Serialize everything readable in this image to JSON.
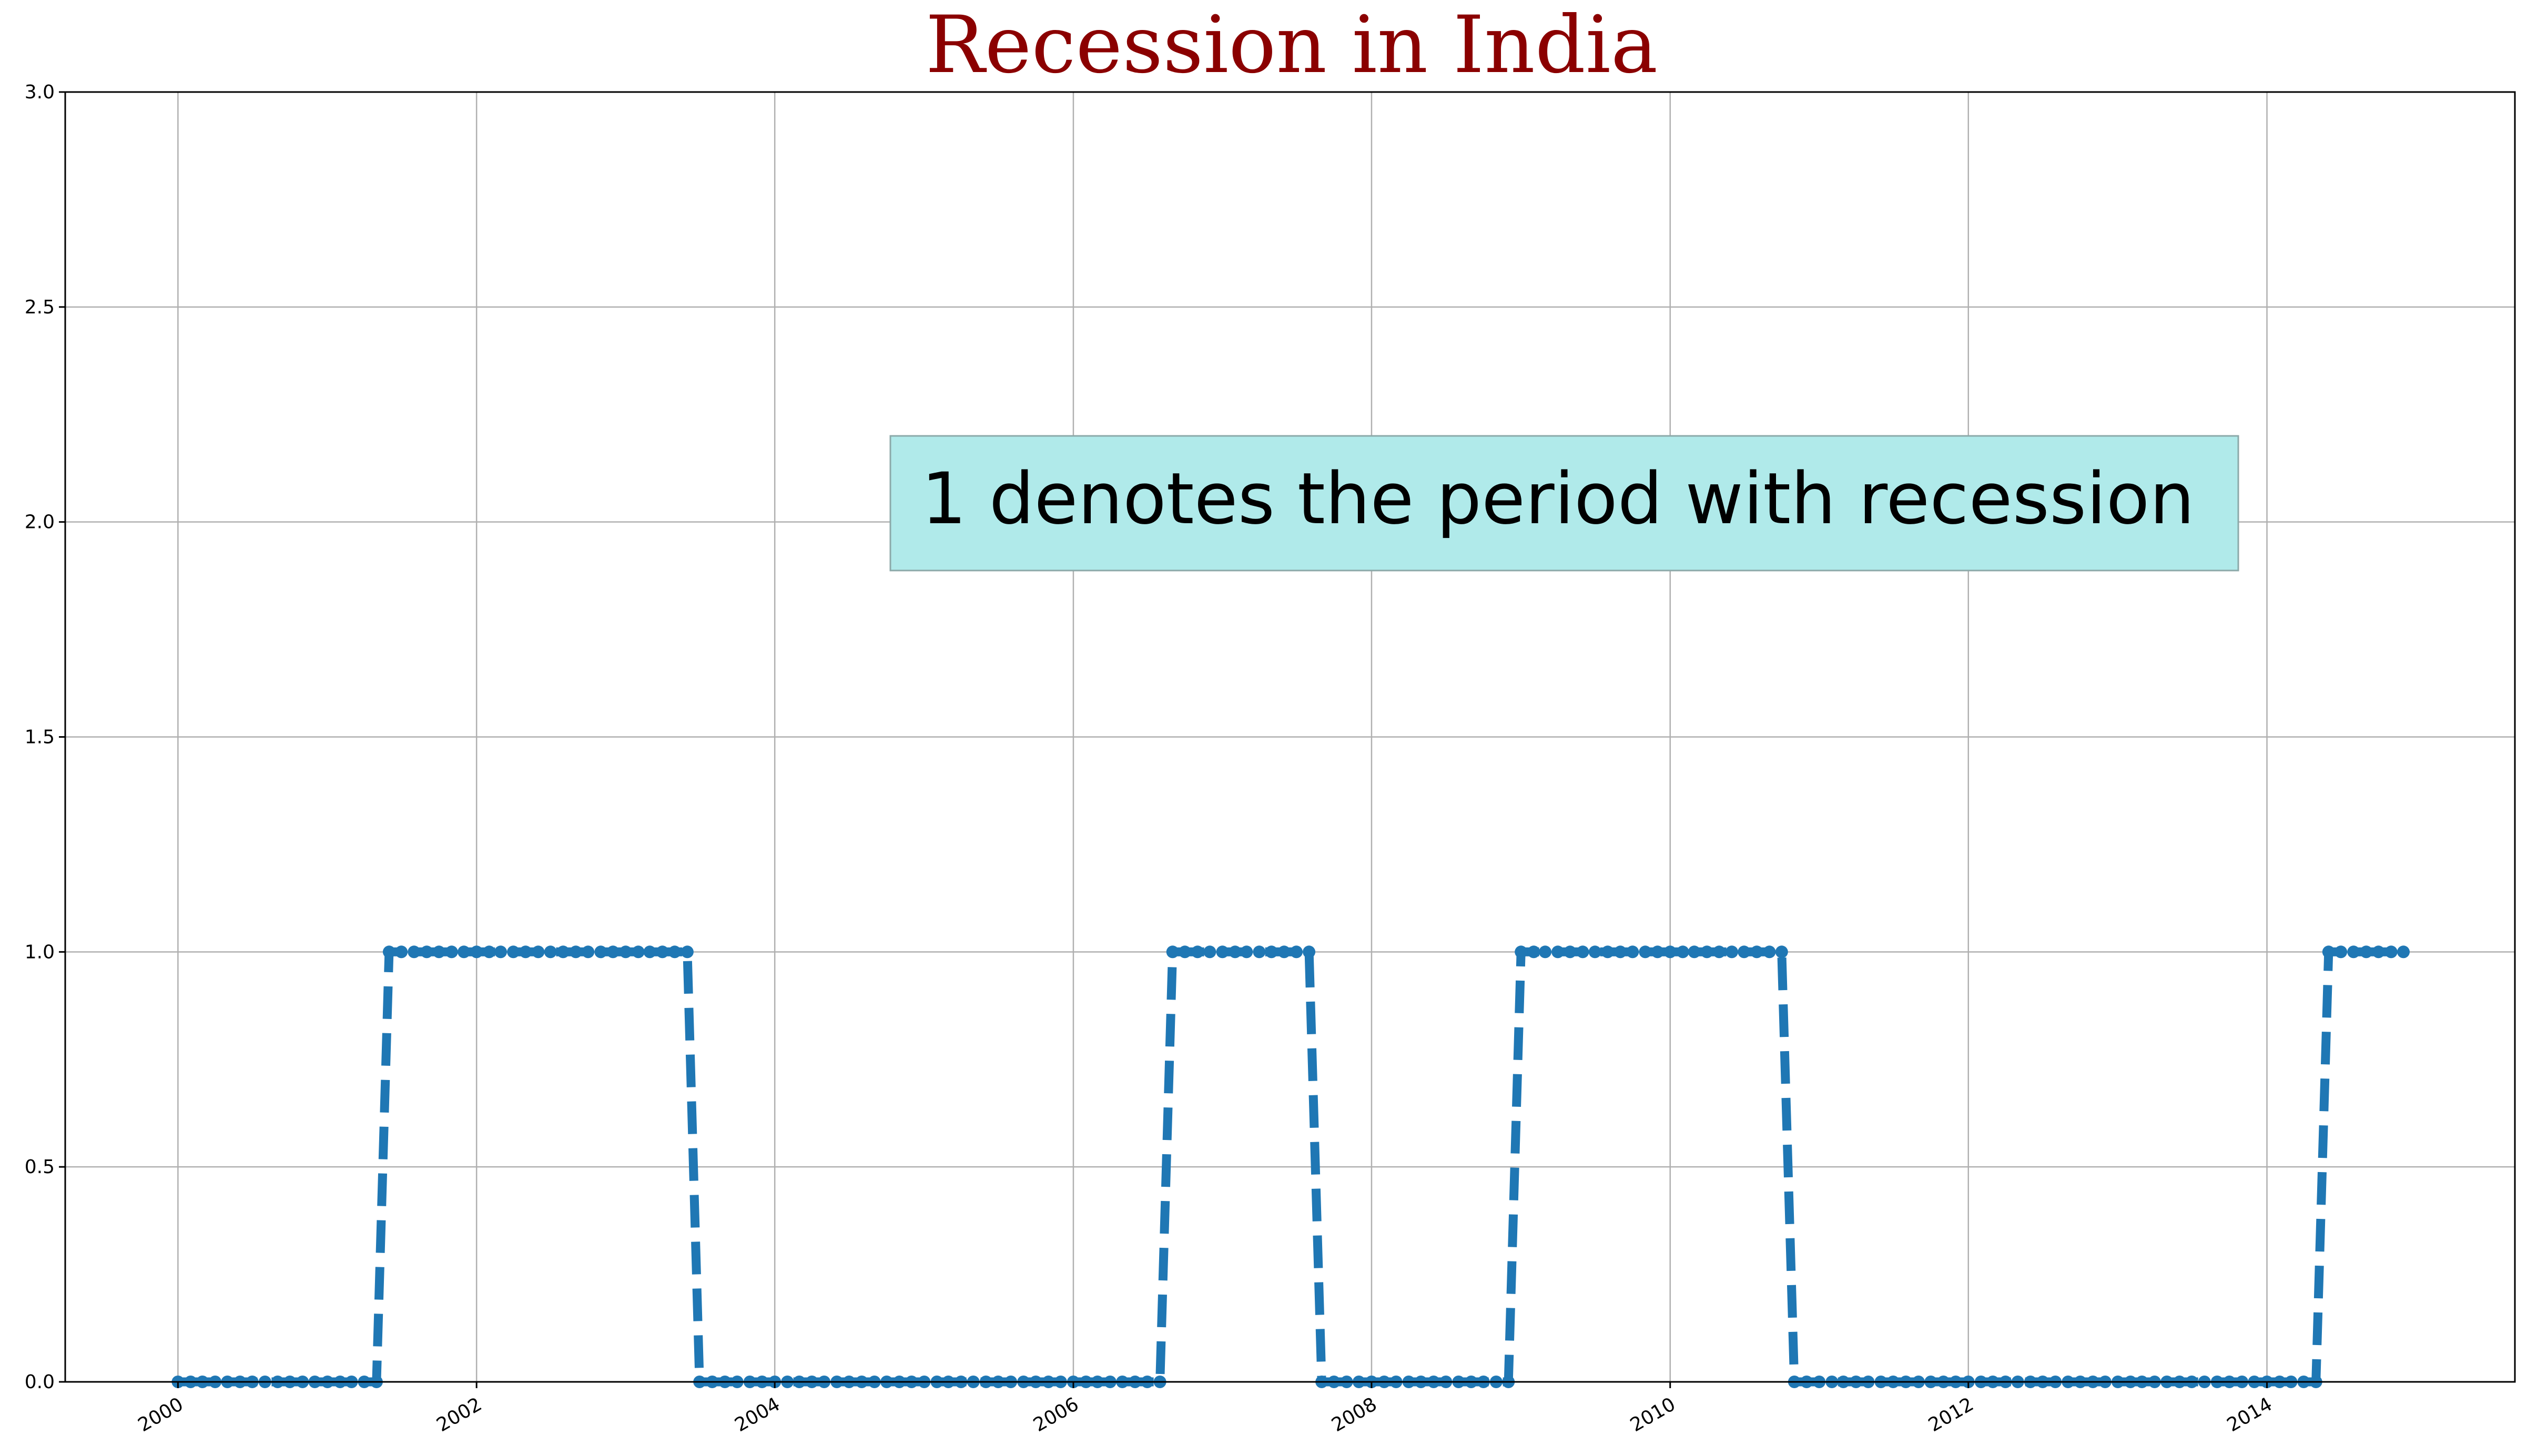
{
  "chart_data": {
    "type": "line",
    "title": "Recession in India",
    "xlabel": "",
    "ylabel": "",
    "x_ticks": [
      "2000",
      "2002",
      "2004",
      "2006",
      "2008",
      "2010",
      "2012",
      "2014"
    ],
    "y_ticks": [
      "0.0",
      "0.5",
      "1.0",
      "1.5",
      "2.0",
      "2.5",
      "3.0"
    ],
    "xlim": [
      "1999-03-31",
      "2015-08-31"
    ],
    "ylim": [
      0,
      3
    ],
    "grid": true,
    "annotation": "1 denotes the period with recession",
    "x_frequency": "monthly",
    "x_start": "2000-01",
    "x_end": "2014-12",
    "recession_periods": [
      [
        "2001-06",
        "2003-06"
      ],
      [
        "2006-09",
        "2007-08"
      ],
      [
        "2009-01",
        "2010-10"
      ],
      [
        "2014-06",
        "2014-12"
      ]
    ],
    "series": [
      {
        "style": "dashed line with circle markers",
        "values_description": "monthly 0/1 indicator; 1 during recession periods, 0 otherwise"
      }
    ]
  },
  "colors": {
    "title": "#8b0000",
    "line": "#1f77b4",
    "grid": "#b0b0b0",
    "annotation_box": "#b0eaea",
    "annotation_border": "#8ca9a9"
  }
}
